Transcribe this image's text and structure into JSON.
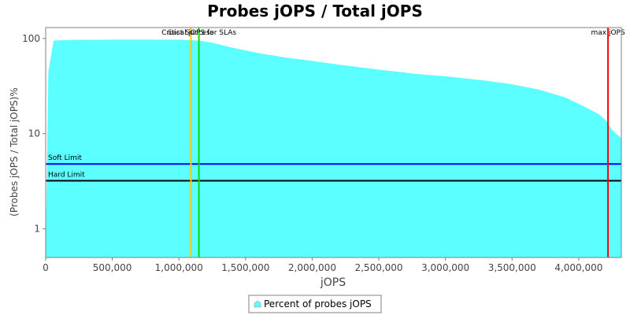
{
  "chart_data": {
    "type": "area",
    "title": "Probes jOPS / Total jOPS",
    "xlabel": "jOPS",
    "ylabel": "(Probes jOPS / Total jOPS)%",
    "y_scale": "log",
    "xlim": [
      0,
      4320000
    ],
    "ylim": [
      0.5,
      130
    ],
    "x_ticks": [
      0,
      500000,
      1000000,
      1500000,
      2000000,
      2500000,
      3000000,
      3500000,
      4000000
    ],
    "x_tick_labels": [
      "0",
      "500,000",
      "1,000,000",
      "1,500,000",
      "2,000,000",
      "2,500,000",
      "3,000,000",
      "3,500,000",
      "4,000,000"
    ],
    "y_ticks": [
      1,
      10,
      100
    ],
    "y_tick_labels": [
      "1",
      "10",
      "100"
    ],
    "grid": false,
    "legend_position": "bottom-center",
    "series": [
      {
        "name": "Percent of probes jOPS",
        "color": "#5cffff",
        "x": [
          0,
          20000,
          60000,
          200000,
          500000,
          800000,
          1000000,
          1150000,
          1250000,
          1400000,
          1600000,
          1800000,
          2000000,
          2200000,
          2500000,
          2800000,
          3000000,
          3300000,
          3500000,
          3700000,
          3900000,
          4050000,
          4150000,
          4200000,
          4250000,
          4280000,
          4320000
        ],
        "values": [
          0.5,
          45,
          95,
          96.5,
          97,
          97,
          97,
          95,
          90,
          80,
          70,
          63,
          58,
          53,
          47,
          42,
          40,
          36,
          33,
          29,
          24,
          19,
          16,
          14,
          11,
          10,
          9
        ]
      }
    ],
    "markers": [
      {
        "x": 1090000,
        "color": "#ffc800",
        "label": "Last Success"
      },
      {
        "x": 1150000,
        "color": "#00dd00",
        "label": "Critical jOPS for SLAs"
      },
      {
        "x": 4220000,
        "color": "#ff0000",
        "label": "max jOPS"
      }
    ],
    "limits": [
      {
        "y": 4.8,
        "color": "#0000ff",
        "label": "Soft Limit"
      },
      {
        "y": 3.2,
        "color": "#000000",
        "label": "Hard Limit"
      }
    ]
  }
}
